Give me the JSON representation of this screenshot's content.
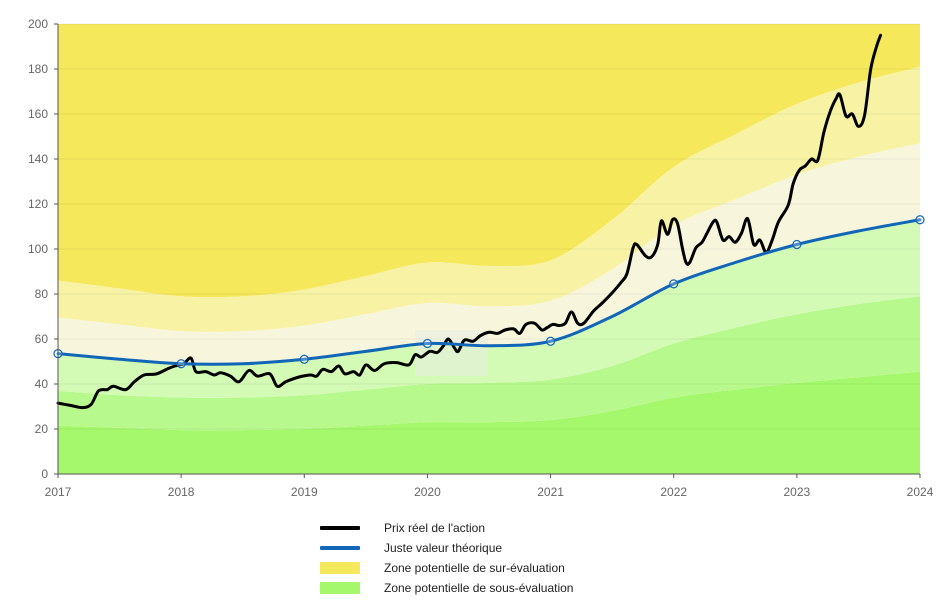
{
  "chart_data": {
    "type": "area",
    "title": "",
    "xlabel": "",
    "ylabel": "",
    "xlim": [
      2017,
      2024
    ],
    "ylim": [
      0,
      200
    ],
    "x_ticks": [
      "2017",
      "2018",
      "2019",
      "2020",
      "2021",
      "2022",
      "2023",
      "2024"
    ],
    "y_ticks": [
      "0",
      "20",
      "40",
      "60",
      "80",
      "100",
      "120",
      "140",
      "160",
      "180",
      "200"
    ],
    "grid": true,
    "legend_position": "bottom",
    "fair_value_points": [
      [
        2017,
        53.5
      ],
      [
        2018,
        49
      ],
      [
        2019,
        51
      ],
      [
        2020,
        58
      ],
      [
        2021,
        59
      ],
      [
        2022,
        84.5
      ],
      [
        2023,
        102
      ],
      [
        2024,
        113
      ]
    ],
    "bands": {
      "x": [
        2017,
        2017.5,
        2018,
        2018.5,
        2019,
        2019.5,
        2020,
        2020.5,
        2021,
        2021.5,
        2022,
        2022.5,
        2023,
        2023.5,
        2024
      ],
      "levels": [
        [
          0,
          0,
          0,
          0,
          0,
          0,
          0,
          0,
          0,
          0,
          0,
          0,
          0,
          0,
          0
        ],
        [
          21.5,
          20.5,
          19.5,
          19.5,
          20,
          21.5,
          23,
          23,
          24,
          28,
          34,
          37.5,
          40.5,
          43,
          45.5
        ],
        [
          37,
          35,
          34,
          34,
          35,
          37.5,
          40,
          40.5,
          42,
          48,
          58,
          65,
          71,
          75.5,
          79
        ],
        [
          53.5,
          51,
          49,
          49,
          51,
          54.5,
          58,
          57,
          59,
          70,
          84.5,
          94,
          102,
          108,
          113
        ],
        [
          69.5,
          66.5,
          63.5,
          63.5,
          66,
          71,
          76,
          74.5,
          77,
          91,
          110.5,
          122,
          133,
          141,
          147
        ],
        [
          86,
          82.5,
          79,
          79,
          82,
          88,
          94,
          92.5,
          95,
          113,
          136.5,
          151,
          164.5,
          174,
          181
        ],
        [
          200,
          200,
          200,
          200,
          200,
          200,
          200,
          200,
          200,
          200,
          200,
          200,
          200,
          200,
          200
        ]
      ],
      "colors": [
        "#a5f76b",
        "#b8f98d",
        "#d3fbb5",
        "#f7f6dc",
        "#f8f3a4",
        "#f5e85a"
      ]
    },
    "series": [
      {
        "name": "Prix réel de l'action",
        "color": "#000000",
        "points": [
          [
            2017.0,
            31.5
          ],
          [
            2017.1,
            30.5
          ],
          [
            2017.2,
            29.5
          ],
          [
            2017.27,
            31
          ],
          [
            2017.33,
            37
          ],
          [
            2017.4,
            37.5
          ],
          [
            2017.45,
            39
          ],
          [
            2017.55,
            37.5
          ],
          [
            2017.62,
            41
          ],
          [
            2017.7,
            44
          ],
          [
            2017.8,
            44.5
          ],
          [
            2017.9,
            47
          ],
          [
            2017.95,
            48
          ],
          [
            2018.02,
            49
          ],
          [
            2018.08,
            51.5
          ],
          [
            2018.12,
            45.5
          ],
          [
            2018.2,
            45.5
          ],
          [
            2018.27,
            44
          ],
          [
            2018.32,
            45
          ],
          [
            2018.4,
            43.5
          ],
          [
            2018.47,
            41
          ],
          [
            2018.55,
            46
          ],
          [
            2018.62,
            43.5
          ],
          [
            2018.72,
            44.5
          ],
          [
            2018.78,
            39
          ],
          [
            2018.85,
            41
          ],
          [
            2018.95,
            43
          ],
          [
            2019.05,
            44
          ],
          [
            2019.1,
            43.5
          ],
          [
            2019.15,
            46.5
          ],
          [
            2019.22,
            45.5
          ],
          [
            2019.28,
            48
          ],
          [
            2019.33,
            44.5
          ],
          [
            2019.4,
            45.5
          ],
          [
            2019.45,
            44
          ],
          [
            2019.5,
            48.5
          ],
          [
            2019.57,
            46
          ],
          [
            2019.65,
            49
          ],
          [
            2019.75,
            49.5
          ],
          [
            2019.85,
            48.5
          ],
          [
            2019.9,
            53
          ],
          [
            2019.95,
            52
          ],
          [
            2020.02,
            54.5
          ],
          [
            2020.08,
            54
          ],
          [
            2020.13,
            57
          ],
          [
            2020.17,
            60
          ],
          [
            2020.22,
            56
          ],
          [
            2020.25,
            54.5
          ],
          [
            2020.3,
            59.5
          ],
          [
            2020.37,
            59
          ],
          [
            2020.43,
            61.5
          ],
          [
            2020.5,
            63
          ],
          [
            2020.57,
            62.5
          ],
          [
            2020.63,
            64
          ],
          [
            2020.7,
            64.5
          ],
          [
            2020.75,
            62.5
          ],
          [
            2020.8,
            66.5
          ],
          [
            2020.87,
            67
          ],
          [
            2020.93,
            64
          ],
          [
            2020.97,
            65
          ],
          [
            2021.02,
            66.5
          ],
          [
            2021.07,
            66
          ],
          [
            2021.12,
            67
          ],
          [
            2021.17,
            72
          ],
          [
            2021.22,
            67
          ],
          [
            2021.27,
            67
          ],
          [
            2021.35,
            72.5
          ],
          [
            2021.42,
            76
          ],
          [
            2021.5,
            80.5
          ],
          [
            2021.57,
            85
          ],
          [
            2021.62,
            89
          ],
          [
            2021.67,
            100.5
          ],
          [
            2021.7,
            102
          ],
          [
            2021.77,
            97
          ],
          [
            2021.82,
            96.5
          ],
          [
            2021.87,
            102
          ],
          [
            2021.9,
            112.5
          ],
          [
            2021.95,
            106.5
          ],
          [
            2021.99,
            113
          ],
          [
            2022.03,
            111.5
          ],
          [
            2022.07,
            100.5
          ],
          [
            2022.1,
            94
          ],
          [
            2022.13,
            94
          ],
          [
            2022.18,
            100.5
          ],
          [
            2022.23,
            103
          ],
          [
            2022.27,
            107
          ],
          [
            2022.32,
            112
          ],
          [
            2022.35,
            112
          ],
          [
            2022.4,
            104
          ],
          [
            2022.45,
            105.5
          ],
          [
            2022.5,
            103
          ],
          [
            2022.55,
            107
          ],
          [
            2022.6,
            113.5
          ],
          [
            2022.65,
            102
          ],
          [
            2022.7,
            104
          ],
          [
            2022.75,
            98.5
          ],
          [
            2022.8,
            104
          ],
          [
            2022.85,
            112
          ],
          [
            2022.93,
            119.5
          ],
          [
            2022.97,
            129
          ],
          [
            2023.02,
            135
          ],
          [
            2023.07,
            137
          ],
          [
            2023.12,
            140
          ],
          [
            2023.17,
            139.5
          ],
          [
            2023.22,
            152
          ],
          [
            2023.27,
            161
          ],
          [
            2023.32,
            167
          ],
          [
            2023.35,
            168.5
          ],
          [
            2023.4,
            159
          ],
          [
            2023.45,
            160
          ],
          [
            2023.5,
            154.5
          ],
          [
            2023.55,
            159.5
          ],
          [
            2023.6,
            180
          ],
          [
            2023.65,
            190.5
          ],
          [
            2023.68,
            195
          ]
        ]
      },
      {
        "name": "Juste valeur théorique",
        "color": "#1266b8",
        "points": [
          [
            2017,
            53.5
          ],
          [
            2017.5,
            51
          ],
          [
            2018,
            49
          ],
          [
            2018.5,
            49
          ],
          [
            2019,
            51
          ],
          [
            2019.5,
            54.5
          ],
          [
            2020,
            58
          ],
          [
            2020.5,
            57
          ],
          [
            2021,
            59
          ],
          [
            2021.5,
            70
          ],
          [
            2022,
            84.5
          ],
          [
            2022.5,
            94
          ],
          [
            2023,
            102
          ],
          [
            2023.5,
            108
          ],
          [
            2024,
            113
          ]
        ]
      }
    ]
  },
  "legend": {
    "items": [
      {
        "label": "Prix réel de l'action",
        "kind": "line",
        "color": "#000000"
      },
      {
        "label": "Juste valeur théorique",
        "kind": "line",
        "color": "#1266b8"
      },
      {
        "label": "Zone potentielle de sur-évaluation",
        "kind": "box",
        "color": "#f5e85a"
      },
      {
        "label": "Zone potentielle de sous-évaluation",
        "kind": "box",
        "color": "#a5f76b"
      }
    ]
  }
}
